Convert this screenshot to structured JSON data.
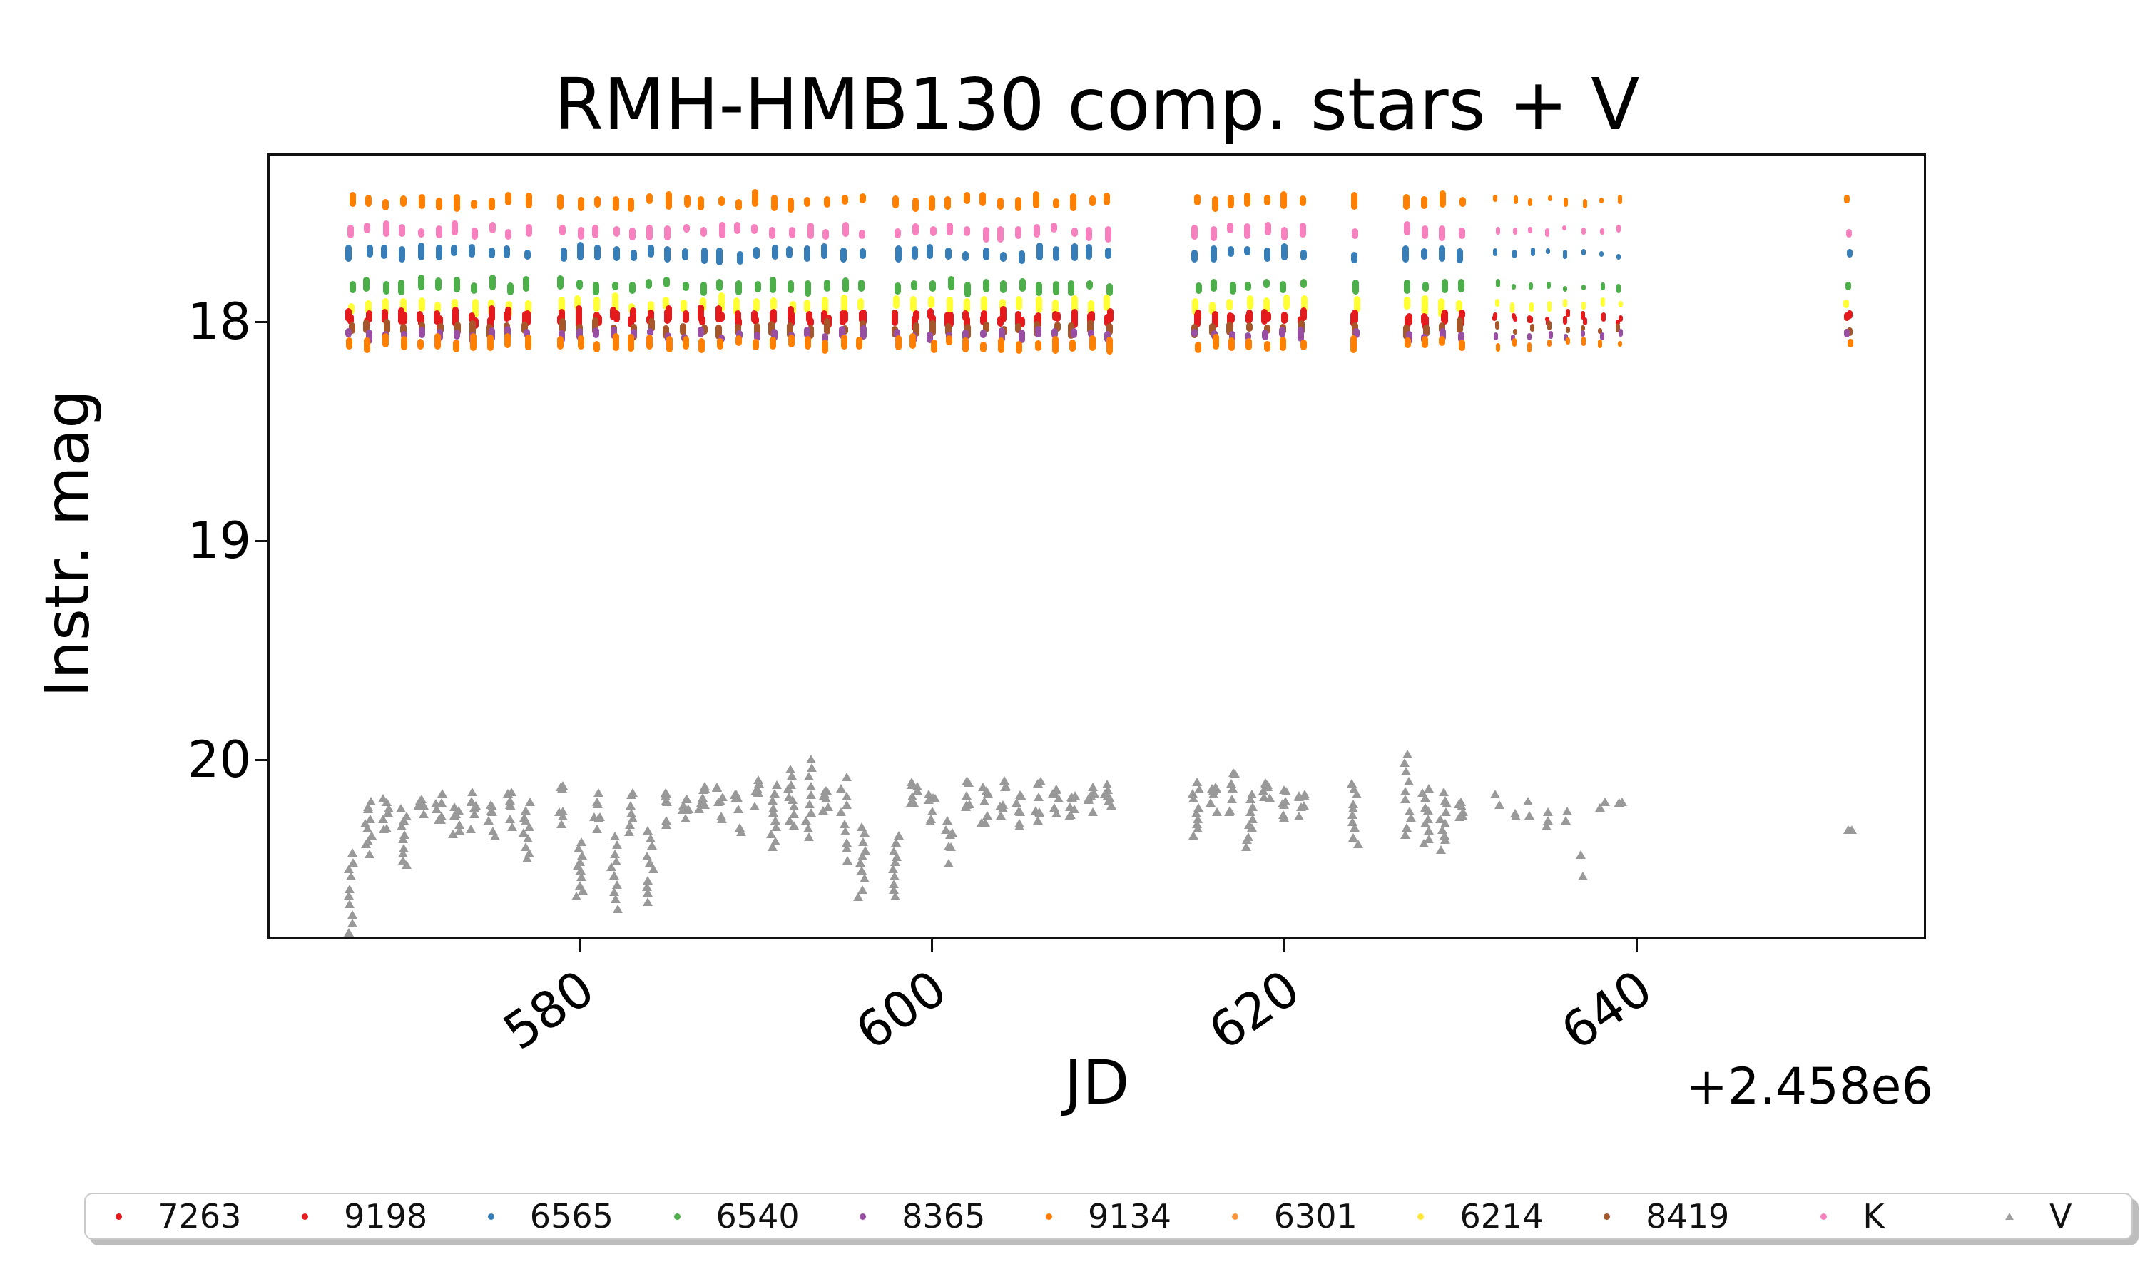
{
  "chart_data": {
    "type": "scatter",
    "title": "RMH-HMB130 comp. stars + V",
    "xlabel": "JD",
    "ylabel": "Instr. mag",
    "x_offset_text": "+2.458e6",
    "grid": false,
    "y_inverted": true,
    "xlim": [
      562.3,
      656.4
    ],
    "ylim": [
      17.23,
      20.82
    ],
    "xticks": [
      580,
      600,
      620,
      640
    ],
    "yticks": [
      18,
      19,
      20
    ],
    "xtick_rotation_deg": 35,
    "epochs": [
      567,
      568,
      569,
      570,
      571,
      572,
      573,
      574,
      575,
      576,
      577,
      579,
      580,
      581,
      582,
      583,
      584,
      585,
      586,
      587,
      588,
      589,
      590,
      591,
      592,
      593,
      594,
      595,
      596,
      598,
      599,
      600,
      601,
      602,
      603,
      604,
      605,
      606,
      607,
      608,
      609,
      610,
      615,
      616,
      617,
      618,
      619,
      620,
      621,
      624,
      627,
      628,
      629,
      630,
      632,
      633,
      634,
      635,
      636,
      637,
      638,
      639,
      652
    ],
    "sparse_after": 631,
    "single_after": 650,
    "comp_series": [
      {
        "name": "9134",
        "color": "#ff7f00",
        "mag": 17.45,
        "spread": 0.055
      },
      {
        "name": "K",
        "color": "#f781bf",
        "mag": 17.585,
        "spread": 0.05
      },
      {
        "name": "6565",
        "color": "#377eb8",
        "mag": 17.69,
        "spread": 0.055
      },
      {
        "name": "6540",
        "color": "#4daf4a",
        "mag": 17.835,
        "spread": 0.05
      },
      {
        "name": "6214",
        "color": "#ffff33",
        "mag": 17.925,
        "spread": 0.062
      },
      {
        "name": "7263",
        "color": "#e41a1c",
        "mag": 17.975,
        "spread": 0.052
      },
      {
        "name": "9198",
        "color": "#e41a1c",
        "mag": 17.99,
        "spread": 0.052
      },
      {
        "name": "8419",
        "color": "#a65628",
        "mag": 18.03,
        "spread": 0.052
      },
      {
        "name": "8365",
        "color": "#984ea3",
        "mag": 18.06,
        "spread": 0.045
      },
      {
        "name": "6301",
        "color": "#ff7f00",
        "mag": 18.1,
        "spread": 0.056
      }
    ],
    "variable_series": {
      "name": "V",
      "color": "#999999",
      "marker": "triangle",
      "points": [
        [
          567,
          20.42,
          20.78
        ],
        [
          568,
          20.18,
          20.42
        ],
        [
          569,
          20.15,
          20.38
        ],
        [
          570,
          20.22,
          20.48
        ],
        [
          571,
          20.18,
          20.35
        ],
        [
          572,
          20.15,
          20.32
        ],
        [
          573,
          20.18,
          20.38
        ],
        [
          574,
          20.15,
          20.35
        ],
        [
          575,
          20.18,
          20.4
        ],
        [
          576,
          20.15,
          20.32
        ],
        [
          577,
          20.2,
          20.45
        ],
        [
          579,
          20.12,
          20.32
        ],
        [
          580,
          20.38,
          20.62
        ],
        [
          581,
          20.15,
          20.35
        ],
        [
          582,
          20.35,
          20.68
        ],
        [
          583,
          20.15,
          20.35
        ],
        [
          584,
          20.32,
          20.65
        ],
        [
          585,
          20.12,
          20.35
        ],
        [
          586,
          20.15,
          20.32
        ],
        [
          587,
          20.1,
          20.3
        ],
        [
          588,
          20.12,
          20.35
        ],
        [
          589,
          20.15,
          20.38
        ],
        [
          590,
          20.1,
          20.32
        ],
        [
          591,
          20.12,
          20.4
        ],
        [
          592,
          20.05,
          20.3
        ],
        [
          593,
          20.0,
          20.35
        ],
        [
          594,
          20.1,
          20.32
        ],
        [
          595,
          20.08,
          20.45
        ],
        [
          596,
          20.3,
          20.62
        ],
        [
          598,
          20.35,
          20.62
        ],
        [
          599,
          20.1,
          20.32
        ],
        [
          600,
          20.12,
          20.35
        ],
        [
          601,
          20.28,
          20.52
        ],
        [
          602,
          20.1,
          20.3
        ],
        [
          603,
          20.12,
          20.32
        ],
        [
          604,
          20.08,
          20.28
        ],
        [
          605,
          20.15,
          20.35
        ],
        [
          606,
          20.1,
          20.32
        ],
        [
          607,
          20.12,
          20.35
        ],
        [
          608,
          20.15,
          20.32
        ],
        [
          609,
          20.1,
          20.3
        ],
        [
          610,
          20.12,
          20.3
        ],
        [
          615,
          20.1,
          20.35
        ],
        [
          616,
          20.12,
          20.32
        ],
        [
          617,
          20.05,
          20.28
        ],
        [
          618,
          20.15,
          20.4
        ],
        [
          619,
          20.1,
          20.32
        ],
        [
          620,
          20.12,
          20.35
        ],
        [
          621,
          20.15,
          20.32
        ],
        [
          624,
          20.1,
          20.38
        ],
        [
          627,
          19.97,
          20.35
        ],
        [
          628,
          20.12,
          20.38
        ],
        [
          629,
          20.15,
          20.4
        ],
        [
          630,
          20.18,
          20.35
        ],
        [
          632,
          20.15,
          20.3
        ],
        [
          633,
          20.18,
          20.32
        ],
        [
          634,
          20.15,
          20.28
        ],
        [
          635,
          20.2,
          20.35
        ],
        [
          636,
          20.18,
          20.3
        ],
        [
          637,
          20.35,
          20.55
        ],
        [
          638,
          20.15,
          20.25
        ],
        [
          639,
          20.18,
          20.28
        ],
        [
          652,
          20.3,
          20.42
        ]
      ]
    }
  },
  "legend": {
    "entries": [
      {
        "label": "7263",
        "color": "#e41a1c",
        "marker": "dot"
      },
      {
        "label": "9198",
        "color": "#e41a1c",
        "marker": "dot"
      },
      {
        "label": "6565",
        "color": "#377eb8",
        "marker": "dot"
      },
      {
        "label": "6540",
        "color": "#4daf4a",
        "marker": "dot"
      },
      {
        "label": "8365",
        "color": "#984ea3",
        "marker": "dot"
      },
      {
        "label": "9134",
        "color": "#ff7f00",
        "marker": "dot"
      },
      {
        "label": "6301",
        "color": "#ff9438",
        "marker": "dot"
      },
      {
        "label": "6214",
        "color": "#ffe733",
        "marker": "dot"
      },
      {
        "label": "8419",
        "color": "#a65628",
        "marker": "dot"
      },
      {
        "label": "K",
        "color": "#f781bf",
        "marker": "dot"
      },
      {
        "label": "V",
        "color": "#a0a0a0",
        "marker": "triangle"
      }
    ]
  }
}
